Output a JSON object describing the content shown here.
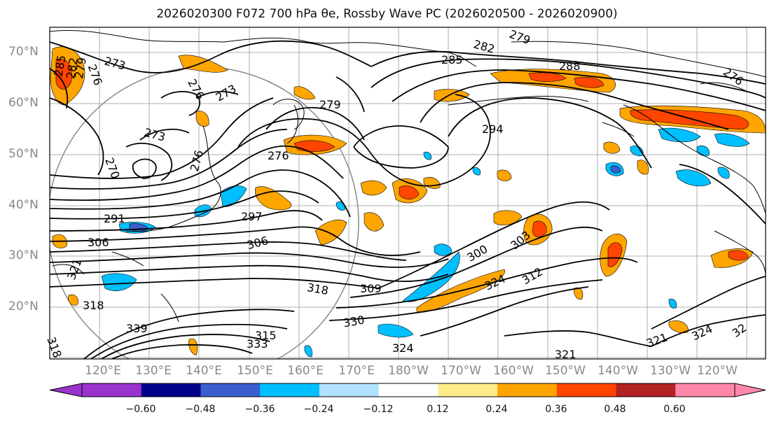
{
  "title": "2026020300 F072 700 hPa θe, Rossby Wave PC (2026020500 - 2026020900)",
  "map": {
    "lat_labels": [
      "70°N",
      "60°N",
      "50°N",
      "40°N",
      "30°N",
      "20°N"
    ],
    "lon_labels": [
      "120°E",
      "130°E",
      "140°E",
      "150°E",
      "160°E",
      "170°E",
      "180°W",
      "170°W",
      "160°W",
      "150°W",
      "140°W",
      "130°W",
      "120°W"
    ],
    "contour_labels": [
      {
        "text": "273"
      },
      {
        "text": "285"
      },
      {
        "text": "282"
      },
      {
        "text": "279"
      },
      {
        "text": "276"
      },
      {
        "text": "276"
      },
      {
        "text": "273"
      },
      {
        "text": "279"
      },
      {
        "text": "285"
      },
      {
        "text": "282"
      },
      {
        "text": "279"
      },
      {
        "text": "288"
      },
      {
        "text": "276"
      },
      {
        "text": "273"
      },
      {
        "text": "294"
      },
      {
        "text": "276"
      },
      {
        "text": "270"
      },
      {
        "text": "276"
      },
      {
        "text": "291"
      },
      {
        "text": "297"
      },
      {
        "text": "306"
      },
      {
        "text": "306"
      },
      {
        "text": "300"
      },
      {
        "text": "303"
      },
      {
        "text": "321"
      },
      {
        "text": "318"
      },
      {
        "text": "309"
      },
      {
        "text": "318"
      },
      {
        "text": "324"
      },
      {
        "text": "312"
      },
      {
        "text": "330"
      },
      {
        "text": "318"
      },
      {
        "text": "339"
      },
      {
        "text": "333"
      },
      {
        "text": "324"
      },
      {
        "text": "321"
      },
      {
        "text": "321"
      },
      {
        "text": "324"
      },
      {
        "text": "32"
      },
      {
        "text": "315"
      }
    ]
  },
  "colorbar": {
    "ticks": [
      "−0.60",
      "−0.48",
      "−0.36",
      "−0.24",
      "−0.12",
      "0.12",
      "0.24",
      "0.36",
      "0.48",
      "0.60"
    ],
    "colors": [
      "#9933cc",
      "#00008b",
      "#3a5fcd",
      "#00bfff",
      "#b0e2ff",
      "#ffffff",
      "#ffec8b",
      "#ffa500",
      "#ff4500",
      "#b22222",
      "#ff88aa"
    ],
    "under_color": "#9933cc",
    "over_color": "#ff88aa"
  },
  "shading_colors": {
    "positive_low": "#ffa500",
    "positive_mid": "#ff4500",
    "positive_high": "#b22222",
    "negative_low": "#00bfff",
    "negative_mid": "#3a5fcd"
  }
}
